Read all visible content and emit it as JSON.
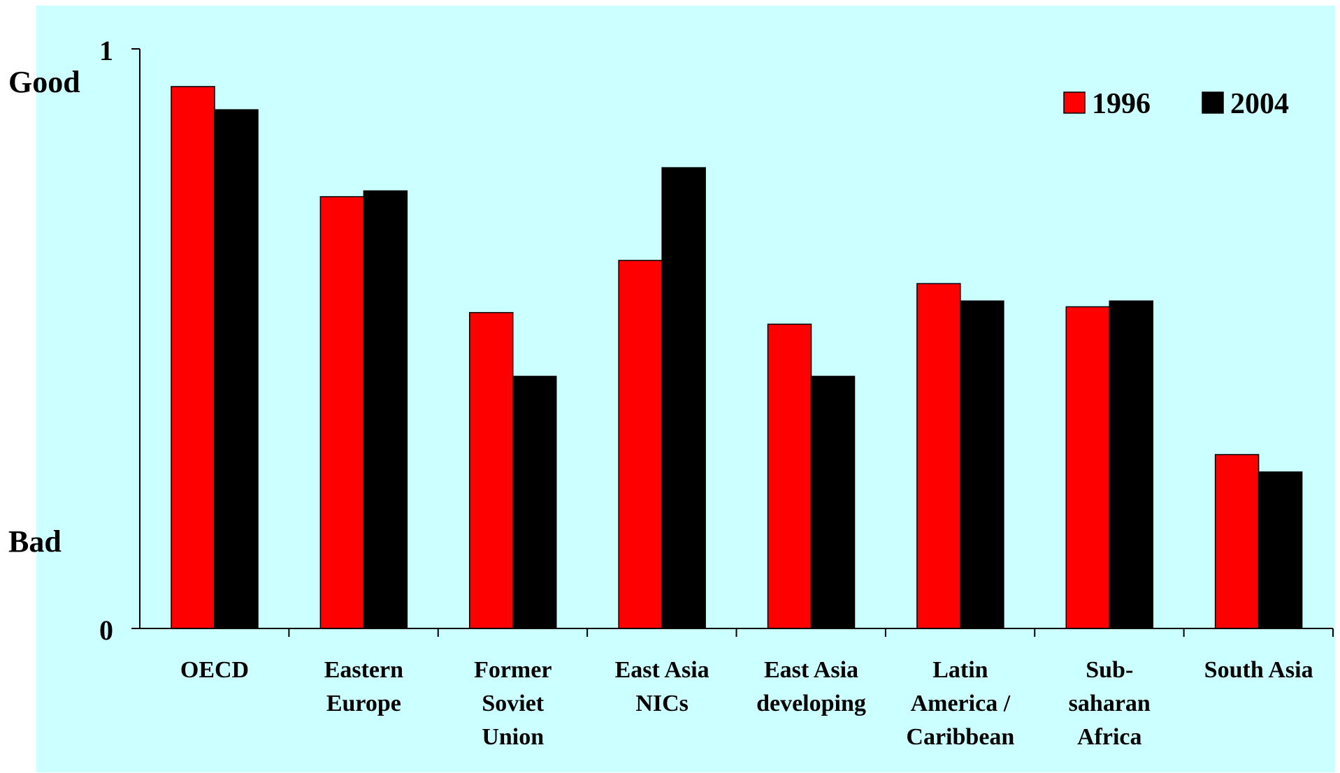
{
  "chart_data": {
    "type": "bar",
    "title": "",
    "xlabel": "",
    "ylabel": "",
    "ylim": [
      0,
      1
    ],
    "y_ticks": [
      "0",
      "1"
    ],
    "y_annotations": {
      "top": "Good",
      "bottom": "Bad"
    },
    "categories": [
      [
        "OECD"
      ],
      [
        "Eastern",
        "Europe"
      ],
      [
        "Former",
        "Soviet",
        "Union"
      ],
      [
        "East Asia",
        "NICs"
      ],
      [
        "East Asia",
        "developing"
      ],
      [
        "Latin",
        "America /",
        "Caribbean"
      ],
      [
        "Sub-",
        "saharan",
        "Africa"
      ],
      [
        "South Asia"
      ]
    ],
    "series": [
      {
        "name": "1996",
        "color": "#ff0000",
        "values": [
          0.935,
          0.745,
          0.545,
          0.635,
          0.525,
          0.595,
          0.555,
          0.3
        ]
      },
      {
        "name": "2004",
        "color": "#000000",
        "values": [
          0.895,
          0.755,
          0.435,
          0.795,
          0.435,
          0.565,
          0.565,
          0.27
        ]
      }
    ],
    "grid": false,
    "legend_position": "top-right",
    "background_color": "#ccffff"
  }
}
